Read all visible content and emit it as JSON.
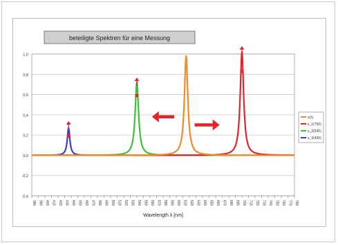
{
  "chart_data": {
    "type": "line",
    "title": "beteiligte Spektren für eine Messung",
    "xlabel": "Wavelength λ [nm]",
    "ylabel": "",
    "xlim": [
      380,
      780
    ],
    "ylim": [
      -0.4,
      1.0
    ],
    "yticks": [
      -0.4,
      -0.2,
      0.0,
      0.2,
      0.4,
      0.6,
      0.8,
      1.0
    ],
    "ytick_labels": [
      "-0,4",
      "-0,2",
      "0,0",
      "0,2",
      "0,4",
      "0,6",
      "0,8",
      "1,0"
    ],
    "xticks": [
      380,
      390,
      400,
      410,
      420,
      430,
      440,
      450,
      460,
      470,
      480,
      490,
      500,
      510,
      520,
      530,
      540,
      550,
      560,
      570,
      580,
      590,
      600,
      610,
      620,
      630,
      640,
      650,
      660,
      670,
      680,
      690,
      700,
      710,
      720,
      730,
      740,
      750,
      760,
      770,
      780
    ],
    "grid": true,
    "legend_position": "right",
    "series": [
      {
        "name": "x(λ)",
        "color": "#f08a2a",
        "peak_x": 615,
        "peak_y": 0.98,
        "width": 4.0
      },
      {
        "name": "x_1(700)",
        "color": "#e3242b",
        "peak_x": 700,
        "peak_y": 1.02,
        "width": 4.0
      },
      {
        "name": "x_2(540)",
        "color": "#3fbf3a",
        "peak_x": 540,
        "peak_y": 0.72,
        "width": 4.0
      },
      {
        "name": "x_3(430)",
        "color": "#3b3bdc",
        "peak_x": 436,
        "peak_y": 0.27,
        "width": 3.0
      }
    ],
    "markers": [
      {
        "x": 436,
        "y": 0.19,
        "color": "#e3242b"
      },
      {
        "x": 540,
        "y": 0.59,
        "color": "#e3242b"
      },
      {
        "x": 700,
        "y": 0.83,
        "color": "#e3242b"
      }
    ],
    "up_arrows": [
      {
        "x": 436,
        "y": 0.31,
        "color": "#e3242b"
      },
      {
        "x": 540,
        "y": 0.74,
        "color": "#e3242b"
      },
      {
        "x": 700,
        "y": 1.05,
        "color": "#e3242b"
      }
    ],
    "shift_arrows": [
      {
        "direction": "left",
        "from_x": 597,
        "to_x": 563,
        "y": 0.38,
        "color": "#e3242b"
      },
      {
        "direction": "right",
        "from_x": 628,
        "to_x": 666,
        "y": 0.3,
        "color": "#e3242b"
      }
    ]
  }
}
